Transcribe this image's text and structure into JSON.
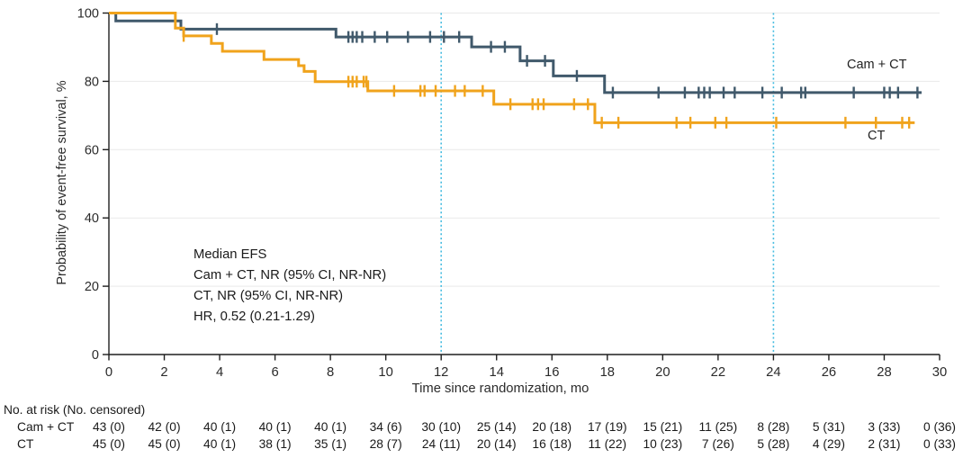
{
  "figure": {
    "curve_labels": {
      "camct": "Cam + CT",
      "ct": "CT"
    },
    "annotation_lines": [
      "Median EFS",
      "Cam + CT, NR (95% CI, NR-NR)",
      "CT, NR (95% CI, NR-NR)",
      "HR, 0.52 (0.21-1.29)"
    ]
  },
  "chart_data": {
    "type": "line",
    "subtype": "kaplan-meier-step-curves",
    "title": "",
    "xlabel": "Time since randomization, mo",
    "ylabel": "Probability of event-free survival, %",
    "xlim": [
      0,
      30
    ],
    "ylim": [
      0,
      100
    ],
    "x_ticks": [
      0,
      2,
      4,
      6,
      8,
      10,
      12,
      14,
      16,
      18,
      20,
      22,
      24,
      26,
      28,
      30
    ],
    "y_ticks": [
      0,
      20,
      40,
      60,
      80,
      100
    ],
    "grid": "horizontal",
    "grid_color": "#e9e9e9",
    "axis_color": "#1f1f1f",
    "reference_lines_x": [
      12,
      24
    ],
    "reference_line_color": "#45bce0",
    "legend_position": "labels-at-line-ends",
    "series": [
      {
        "name": "Cam + CT",
        "color": "#40596b",
        "steps": [
          [
            0,
            100
          ],
          [
            0.25,
            97.7
          ],
          [
            2.6,
            95.3
          ],
          [
            8.2,
            93.0
          ],
          [
            13.1,
            90.1
          ],
          [
            14.85,
            86.0
          ],
          [
            16.05,
            81.6
          ],
          [
            17.9,
            76.7
          ]
        ],
        "end_time": 29.35,
        "censor_marks": [
          [
            3.9,
            95.3
          ],
          [
            8.65,
            93.0
          ],
          [
            8.8,
            93.0
          ],
          [
            8.95,
            93.0
          ],
          [
            9.15,
            93.0
          ],
          [
            9.6,
            93.0
          ],
          [
            10.05,
            93.0
          ],
          [
            10.8,
            93.0
          ],
          [
            11.6,
            93.0
          ],
          [
            12.1,
            93.0
          ],
          [
            12.65,
            93.0
          ],
          [
            13.8,
            90.1
          ],
          [
            14.3,
            90.1
          ],
          [
            15.1,
            86.0
          ],
          [
            15.75,
            86.0
          ],
          [
            16.9,
            81.6
          ],
          [
            18.2,
            76.7
          ],
          [
            19.85,
            76.7
          ],
          [
            20.8,
            76.7
          ],
          [
            21.3,
            76.7
          ],
          [
            21.5,
            76.7
          ],
          [
            21.7,
            76.7
          ],
          [
            22.2,
            76.7
          ],
          [
            22.6,
            76.7
          ],
          [
            23.6,
            76.7
          ],
          [
            24.3,
            76.7
          ],
          [
            25.0,
            76.7
          ],
          [
            25.15,
            76.7
          ],
          [
            26.9,
            76.7
          ],
          [
            28.0,
            76.7
          ],
          [
            28.2,
            76.7
          ],
          [
            28.5,
            76.7
          ],
          [
            29.2,
            76.7
          ]
        ]
      },
      {
        "name": "CT",
        "color": "#f0a31c",
        "steps": [
          [
            0,
            100
          ],
          [
            2.4,
            95.6
          ],
          [
            2.7,
            93.3
          ],
          [
            3.7,
            91.1
          ],
          [
            4.1,
            88.8
          ],
          [
            5.6,
            86.4
          ],
          [
            6.85,
            84.6
          ],
          [
            7.05,
            82.9
          ],
          [
            7.45,
            79.9
          ],
          [
            9.35,
            77.2
          ],
          [
            13.9,
            73.3
          ],
          [
            17.55,
            67.9
          ]
        ],
        "end_time": 29.1,
        "censor_marks": [
          [
            2.7,
            93.3
          ],
          [
            8.65,
            79.9
          ],
          [
            8.8,
            79.9
          ],
          [
            8.95,
            79.9
          ],
          [
            9.2,
            79.9
          ],
          [
            9.3,
            79.9
          ],
          [
            10.3,
            77.2
          ],
          [
            11.25,
            77.2
          ],
          [
            11.4,
            77.2
          ],
          [
            11.8,
            77.2
          ],
          [
            12.5,
            77.2
          ],
          [
            12.85,
            77.2
          ],
          [
            13.5,
            77.2
          ],
          [
            14.5,
            73.3
          ],
          [
            15.3,
            73.3
          ],
          [
            15.5,
            73.3
          ],
          [
            15.7,
            73.3
          ],
          [
            16.8,
            73.3
          ],
          [
            17.3,
            73.3
          ],
          [
            17.8,
            67.9
          ],
          [
            18.4,
            67.9
          ],
          [
            20.5,
            67.9
          ],
          [
            21.0,
            67.9
          ],
          [
            21.9,
            67.9
          ],
          [
            22.3,
            67.9
          ],
          [
            24.1,
            67.9
          ],
          [
            26.6,
            67.9
          ],
          [
            27.7,
            67.9
          ],
          [
            28.65,
            67.9
          ],
          [
            28.9,
            67.9
          ]
        ]
      }
    ]
  },
  "risk_table": {
    "header": "No. at risk (No. censored)",
    "time_points": [
      0,
      2,
      4,
      6,
      8,
      10,
      12,
      14,
      16,
      18,
      20,
      22,
      24,
      26,
      28,
      30
    ],
    "rows": [
      {
        "label": "Cam + CT",
        "values": [
          "43 (0)",
          "42 (0)",
          "40 (1)",
          "40 (1)",
          "40 (1)",
          "34 (6)",
          "30 (10)",
          "25 (14)",
          "20 (18)",
          "17 (19)",
          "15 (21)",
          "11 (25)",
          "8 (28)",
          "5 (31)",
          "3 (33)",
          "0 (36)"
        ]
      },
      {
        "label": "CT",
        "values": [
          "45 (0)",
          "45 (0)",
          "40 (1)",
          "38 (1)",
          "35 (1)",
          "28 (7)",
          "24 (11)",
          "20 (14)",
          "16 (18)",
          "11 (22)",
          "10 (23)",
          "7 (26)",
          "5 (28)",
          "4 (29)",
          "2 (31)",
          "0 (33)"
        ]
      }
    ]
  }
}
